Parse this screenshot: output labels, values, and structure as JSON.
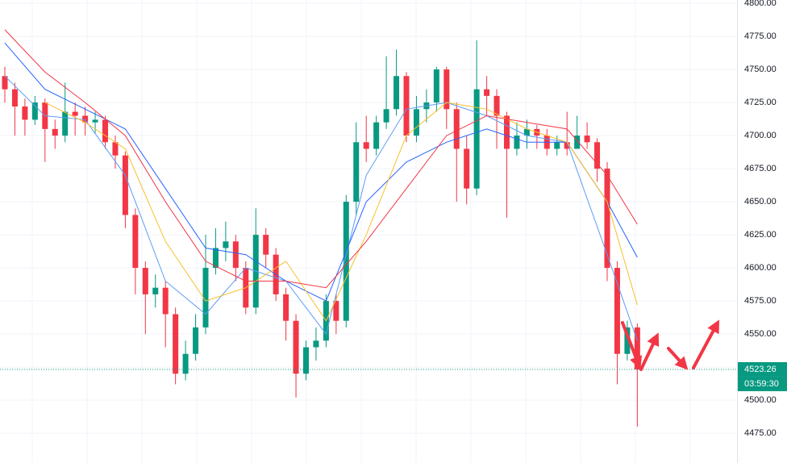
{
  "chart_data": {
    "type": "candlestick",
    "open": [
      4745,
      4735,
      4722,
      4712,
      4725,
      4705,
      4700,
      4718,
      4715,
      4710,
      4712,
      4695,
      4685,
      4640,
      4600,
      4580,
      4585,
      4565,
      4520,
      4535,
      4555,
      4600,
      4615,
      4620,
      4600,
      4570,
      4625,
      4610,
      4580,
      4560,
      4520,
      4540,
      4545,
      4575,
      4560,
      4650,
      4695,
      4690,
      4710,
      4720,
      4745,
      4700,
      4720,
      4725,
      4750,
      4720,
      4690,
      4660,
      4735,
      4730,
      4715,
      4690,
      4700,
      4705,
      4700,
      4690,
      4695,
      4690,
      4700,
      4695,
      4675,
      4600,
      4535,
      4555
    ],
    "high": [
      4752,
      4740,
      4728,
      4730,
      4728,
      4712,
      4740,
      4725,
      4722,
      4718,
      4715,
      4700,
      4688,
      4645,
      4605,
      4595,
      4590,
      4570,
      4545,
      4565,
      4625,
      4630,
      4635,
      4625,
      4605,
      4645,
      4630,
      4615,
      4585,
      4565,
      4545,
      4555,
      4580,
      4580,
      4655,
      4710,
      4715,
      4715,
      4760,
      4765,
      4748,
      4730,
      4735,
      4752,
      4752,
      4725,
      4700,
      4772,
      4745,
      4735,
      4718,
      4710,
      4712,
      4708,
      4705,
      4700,
      4718,
      4715,
      4710,
      4698,
      4680,
      4605,
      4560,
      4558
    ],
    "low": [
      4725,
      4700,
      4700,
      4708,
      4680,
      4690,
      4695,
      4700,
      4700,
      4702,
      4690,
      4675,
      4630,
      4580,
      4550,
      4570,
      4540,
      4512,
      4515,
      4530,
      4550,
      4595,
      4605,
      4590,
      4565,
      4565,
      4600,
      4575,
      4545,
      4502,
      4515,
      4530,
      4540,
      4550,
      4555,
      4640,
      4680,
      4685,
      4705,
      4715,
      4695,
      4695,
      4710,
      4718,
      4705,
      4650,
      4648,
      4655,
      4715,
      4690,
      4638,
      4685,
      4690,
      4690,
      4685,
      4685,
      4685,
      4690,
      4690,
      4665,
      4590,
      4512,
      4530,
      4480
    ],
    "close": [
      4735,
      4722,
      4712,
      4725,
      4705,
      4700,
      4718,
      4715,
      4710,
      4712,
      4695,
      4685,
      4640,
      4600,
      4580,
      4585,
      4565,
      4520,
      4535,
      4555,
      4600,
      4615,
      4620,
      4600,
      4570,
      4625,
      4610,
      4580,
      4560,
      4520,
      4540,
      4545,
      4575,
      4560,
      4650,
      4695,
      4690,
      4710,
      4720,
      4745,
      4700,
      4720,
      4725,
      4750,
      4720,
      4690,
      4660,
      4735,
      4730,
      4715,
      4690,
      4700,
      4705,
      4700,
      4690,
      4695,
      4690,
      4700,
      4695,
      4675,
      4600,
      4535,
      4555,
      4523.26
    ],
    "up_color": "#089981",
    "down_color": "#f23645",
    "ma_x": [
      0,
      4,
      8,
      12,
      16,
      20,
      24,
      28,
      32,
      36,
      40,
      44,
      48,
      52,
      56,
      60,
      63
    ],
    "series": [
      {
        "color": "#5b9cf6",
        "values": [
          4745,
          4715,
          4712,
          4670,
          4590,
          4565,
          4600,
          4590,
          4550,
          4670,
          4720,
          4725,
          4715,
          4700,
          4695,
          4610,
          4545
        ]
      },
      {
        "color": "#2962ff",
        "values": [
          4770,
          4735,
          4720,
          4705,
          4660,
          4615,
          4610,
          4590,
          4575,
          4650,
          4680,
          4695,
          4705,
          4695,
          4695,
          4650,
          4608
        ]
      },
      {
        "color": "#f7c02b",
        "values": [
          null,
          4725,
          4710,
          4690,
          4620,
          4575,
          4585,
          4605,
          4560,
          4625,
          4700,
          4725,
          4720,
          4705,
          4695,
          4650,
          4572
        ]
      },
      {
        "color": "#f23645",
        "values": [
          4780,
          4748,
          4725,
          4700,
          4650,
          4605,
          4590,
          4590,
          4585,
          4620,
          4660,
          4700,
          4715,
          4710,
          4705,
          4670,
          4633
        ]
      }
    ],
    "ylim": [
      4452.5,
      4802.5
    ],
    "yticks": [
      {
        "value": 4475,
        "label": "4475.00"
      },
      {
        "value": 4500,
        "label": "4500.00"
      },
      {
        "value": 4525,
        "label": "4525.00"
      },
      {
        "value": 4550,
        "label": "4550.00"
      },
      {
        "value": 4575,
        "label": "4575.00"
      },
      {
        "value": 4600,
        "label": "4600.00"
      },
      {
        "value": 4625,
        "label": "4625.00"
      },
      {
        "value": 4650,
        "label": "4650.00"
      },
      {
        "value": 4675,
        "label": "4675.00"
      },
      {
        "value": 4700,
        "label": "4700.00"
      },
      {
        "value": 4725,
        "label": "4725.00"
      },
      {
        "value": 4750,
        "label": "4750.00"
      },
      {
        "value": 4775,
        "label": "4775.00"
      },
      {
        "value": 4800,
        "label": "4800.00"
      }
    ],
    "grid": true,
    "last_price": 4523.26,
    "countdown": "03:59:30"
  }
}
